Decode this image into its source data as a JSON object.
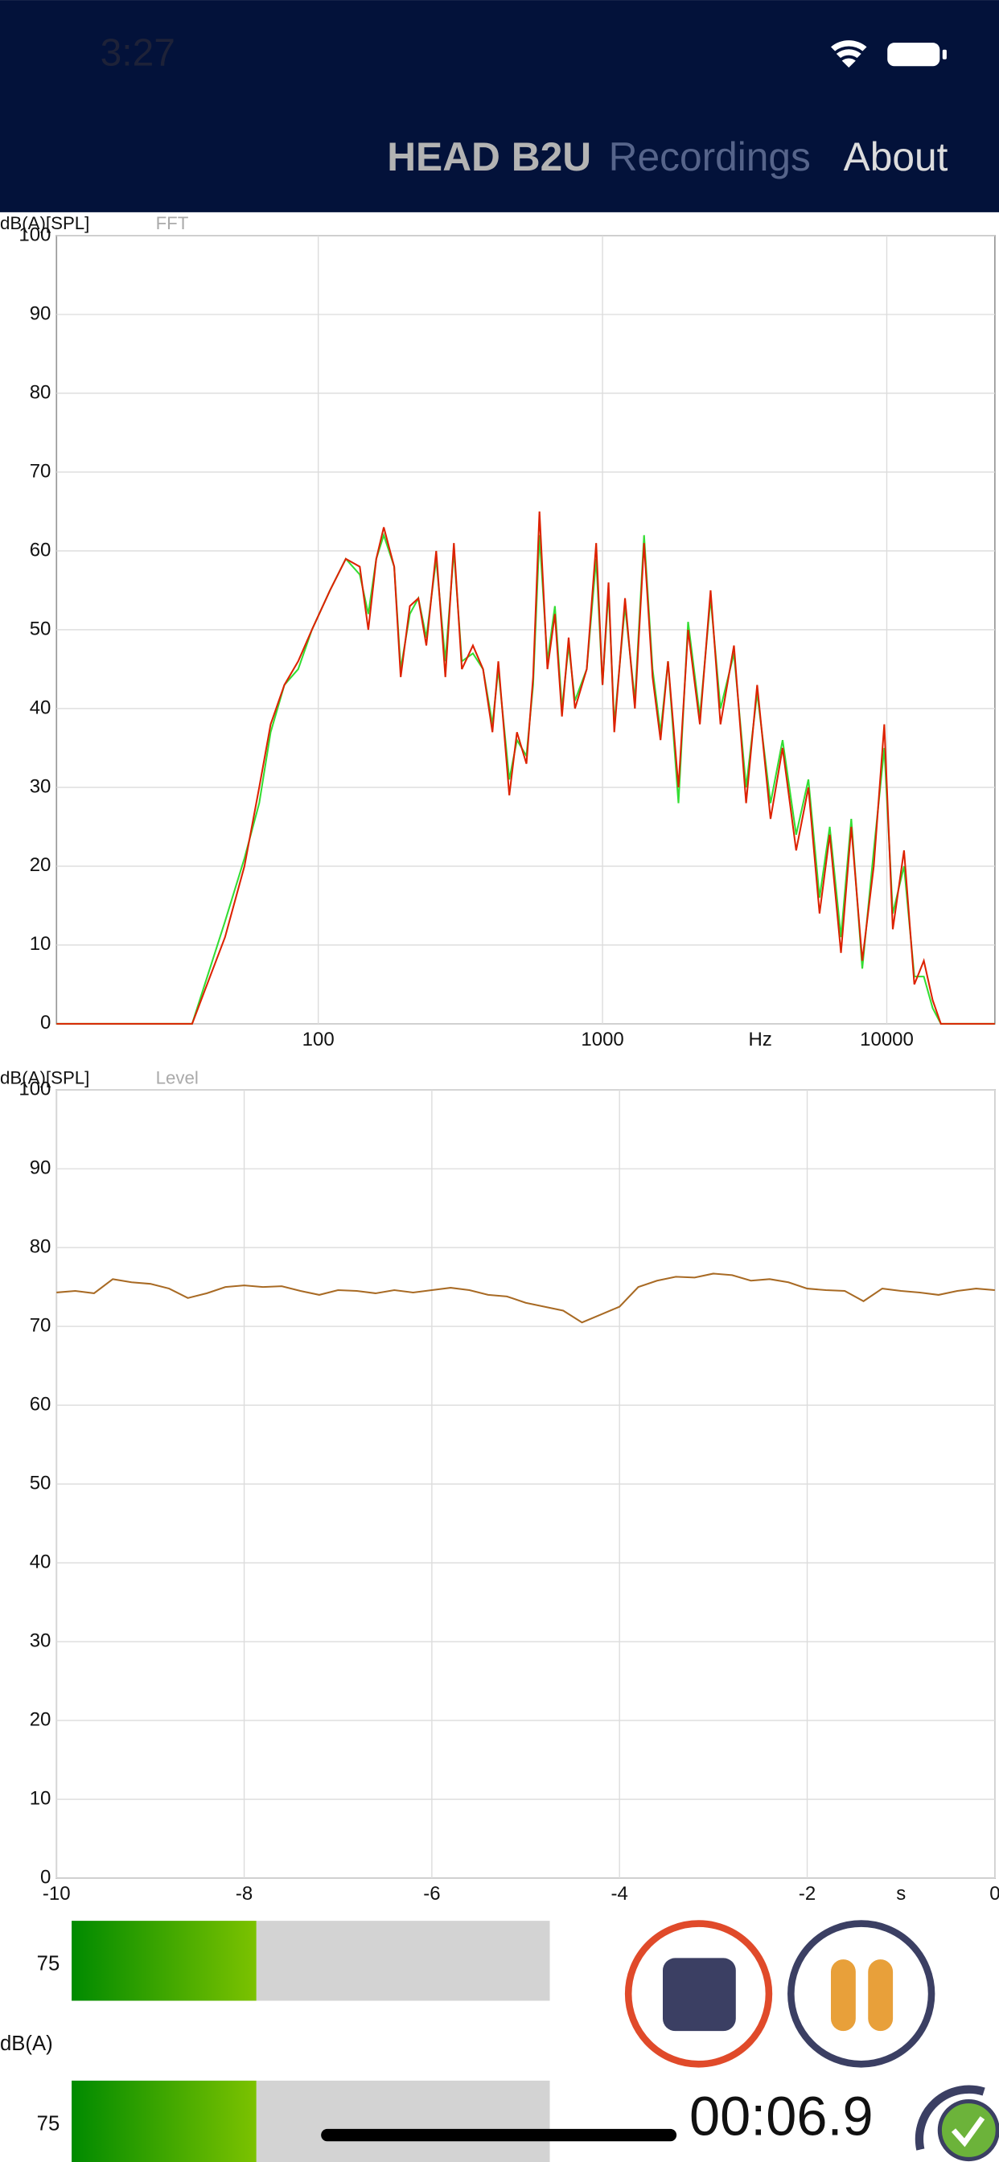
{
  "status_bar": {
    "time": "3:27"
  },
  "nav": {
    "items": [
      "HEAD B2U",
      "Recordings",
      "About"
    ]
  },
  "chart_data": [
    {
      "type": "line",
      "title": "FFT",
      "ylabel": "dB(A)[SPL]",
      "xlabel": "Hz",
      "xscale": "log",
      "xlim": [
        12,
        24000
      ],
      "xticks": [
        100,
        1000,
        10000
      ],
      "ylim": [
        0,
        100
      ],
      "yticks": [
        0,
        10,
        20,
        30,
        40,
        50,
        60,
        70,
        80,
        90,
        100
      ],
      "grid": true,
      "x": [
        12,
        36,
        47,
        55,
        62,
        68,
        76,
        85,
        95,
        110,
        125,
        140,
        150,
        160,
        170,
        185,
        195,
        210,
        225,
        240,
        260,
        280,
        300,
        320,
        350,
        380,
        410,
        430,
        470,
        500,
        540,
        570,
        600,
        640,
        680,
        720,
        760,
        800,
        880,
        950,
        1000,
        1050,
        1100,
        1200,
        1300,
        1400,
        1500,
        1600,
        1700,
        1850,
        2000,
        2200,
        2400,
        2600,
        2900,
        3200,
        3500,
        3900,
        4300,
        4800,
        5300,
        5800,
        6300,
        6900,
        7500,
        8200,
        9000,
        9800,
        10500,
        11500,
        12500,
        13500,
        14500,
        15500,
        24000
      ],
      "series": [
        {
          "name": "green",
          "color": "#33dd33",
          "values": [
            0,
            0,
            13,
            21,
            28,
            37,
            43,
            45,
            50,
            55,
            59,
            57,
            52,
            59,
            62,
            58,
            45,
            52,
            54,
            49,
            59,
            46,
            60,
            46,
            47,
            45,
            38,
            45,
            31,
            36,
            34,
            43,
            62,
            46,
            53,
            40,
            48,
            41,
            45,
            59,
            43,
            55,
            38,
            53,
            41,
            62,
            45,
            37,
            46,
            28,
            51,
            39,
            54,
            40,
            47,
            30,
            42,
            28,
            36,
            24,
            31,
            16,
            25,
            11,
            26,
            7,
            22,
            35,
            14,
            20,
            6,
            6,
            2,
            0,
            0
          ]
        },
        {
          "name": "red",
          "color": "#dd2200",
          "values": [
            0,
            0,
            11,
            20,
            30,
            38,
            43,
            46,
            50,
            55,
            59,
            58,
            50,
            59,
            63,
            58,
            44,
            53,
            54,
            48,
            60,
            44,
            61,
            45,
            48,
            45,
            37,
            46,
            29,
            37,
            33,
            44,
            65,
            45,
            52,
            39,
            49,
            40,
            45,
            61,
            43,
            56,
            37,
            54,
            40,
            61,
            44,
            36,
            46,
            30,
            50,
            38,
            55,
            38,
            48,
            28,
            43,
            26,
            35,
            22,
            30,
            14,
            24,
            9,
            25,
            8,
            20,
            38,
            12,
            22,
            5,
            8,
            3,
            0,
            0
          ]
        }
      ]
    },
    {
      "type": "line",
      "title": "Level",
      "ylabel": "dB(A)[SPL]",
      "xlabel": "s",
      "xlim": [
        -10,
        0
      ],
      "xticks": [
        -10,
        -8,
        -6,
        -4,
        -2,
        0
      ],
      "ylim": [
        0,
        100
      ],
      "yticks": [
        0,
        10,
        20,
        30,
        40,
        50,
        60,
        70,
        80,
        90,
        100
      ],
      "grid": true,
      "x": [
        -10,
        -9.8,
        -9.6,
        -9.4,
        -9.2,
        -9,
        -8.8,
        -8.6,
        -8.4,
        -8.2,
        -8,
        -7.8,
        -7.6,
        -7.4,
        -7.2,
        -7,
        -6.8,
        -6.6,
        -6.4,
        -6.2,
        -6,
        -5.8,
        -5.6,
        -5.4,
        -5.2,
        -5,
        -4.8,
        -4.6,
        -4.4,
        -4.2,
        -4,
        -3.8,
        -3.6,
        -3.4,
        -3.2,
        -3,
        -2.8,
        -2.6,
        -2.4,
        -2.2,
        -2,
        -1.8,
        -1.6,
        -1.4,
        -1.2,
        -1,
        -0.8,
        -0.6,
        -0.4,
        -0.2,
        0
      ],
      "series": [
        {
          "name": "level",
          "color": "#a86a24",
          "values": [
            74.3,
            74.5,
            74.2,
            76,
            75.6,
            75.4,
            74.8,
            73.6,
            74.2,
            75,
            75.2,
            75,
            75.1,
            74.5,
            74,
            74.6,
            74.5,
            74.2,
            74.6,
            74.3,
            74.6,
            74.9,
            74.6,
            74,
            73.8,
            73,
            72.5,
            72,
            70.5,
            71.5,
            72.5,
            75,
            75.8,
            76.3,
            76.2,
            76.7,
            76.5,
            75.8,
            76,
            75.6,
            74.8,
            74.6,
            74.5,
            73.2,
            74.8,
            74.5,
            74.3,
            74,
            74.5,
            74.8,
            74.6
          ]
        }
      ]
    }
  ],
  "meters": {
    "unit": "dB(A)",
    "readings": [
      "75",
      "75"
    ]
  },
  "timer": "00:06.9"
}
